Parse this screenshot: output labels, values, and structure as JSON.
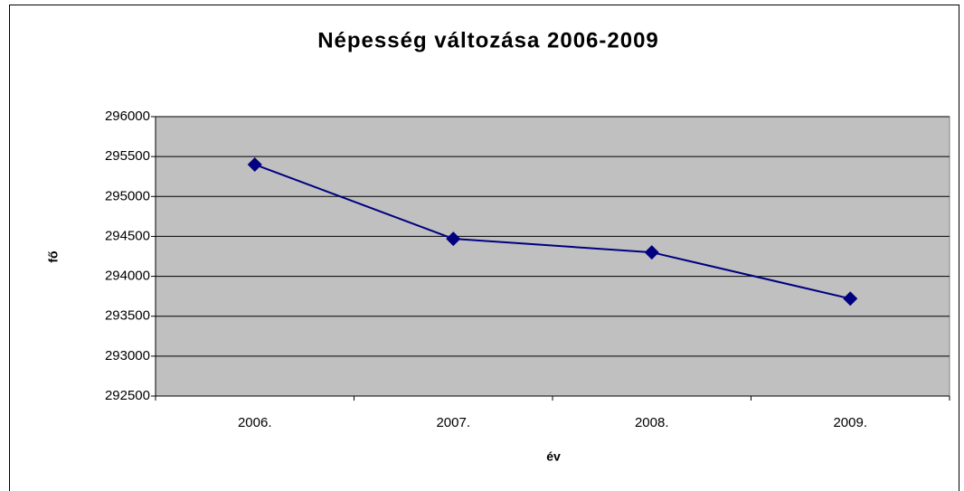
{
  "chart_data": {
    "type": "line",
    "title": "Népesség változása 2006-2009",
    "categories": [
      "2006.",
      "2007.",
      "2008.",
      "2009."
    ],
    "series": [
      {
        "name": "fő",
        "color": "#000080",
        "values": [
          295400,
          294470,
          294300,
          293720
        ]
      }
    ],
    "xlabel": "év",
    "ylabel": "fő",
    "ylim": [
      292500,
      296000
    ],
    "yticks": [
      292500,
      293000,
      293500,
      294000,
      294500,
      295000,
      295500,
      296000
    ],
    "grid": true,
    "plot_background": "#c0c0c0"
  }
}
